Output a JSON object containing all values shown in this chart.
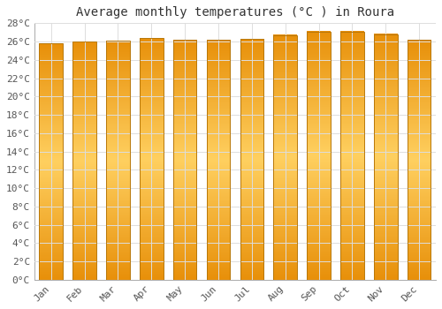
{
  "title": "Average monthly temperatures (°C ) in Roura",
  "months": [
    "Jan",
    "Feb",
    "Mar",
    "Apr",
    "May",
    "Jun",
    "Jul",
    "Aug",
    "Sep",
    "Oct",
    "Nov",
    "Dec"
  ],
  "temperatures": [
    25.8,
    26.0,
    26.1,
    26.4,
    26.2,
    26.2,
    26.3,
    26.7,
    27.1,
    27.1,
    26.8,
    26.2
  ],
  "bar_color": "#FFA500",
  "bar_edge_color": "#CC8800",
  "background_color": "#FFFFFF",
  "grid_color": "#DDDDDD",
  "ylim": [
    0,
    28
  ],
  "ytick_step": 2,
  "title_fontsize": 10,
  "tick_fontsize": 8,
  "bar_width": 0.7
}
